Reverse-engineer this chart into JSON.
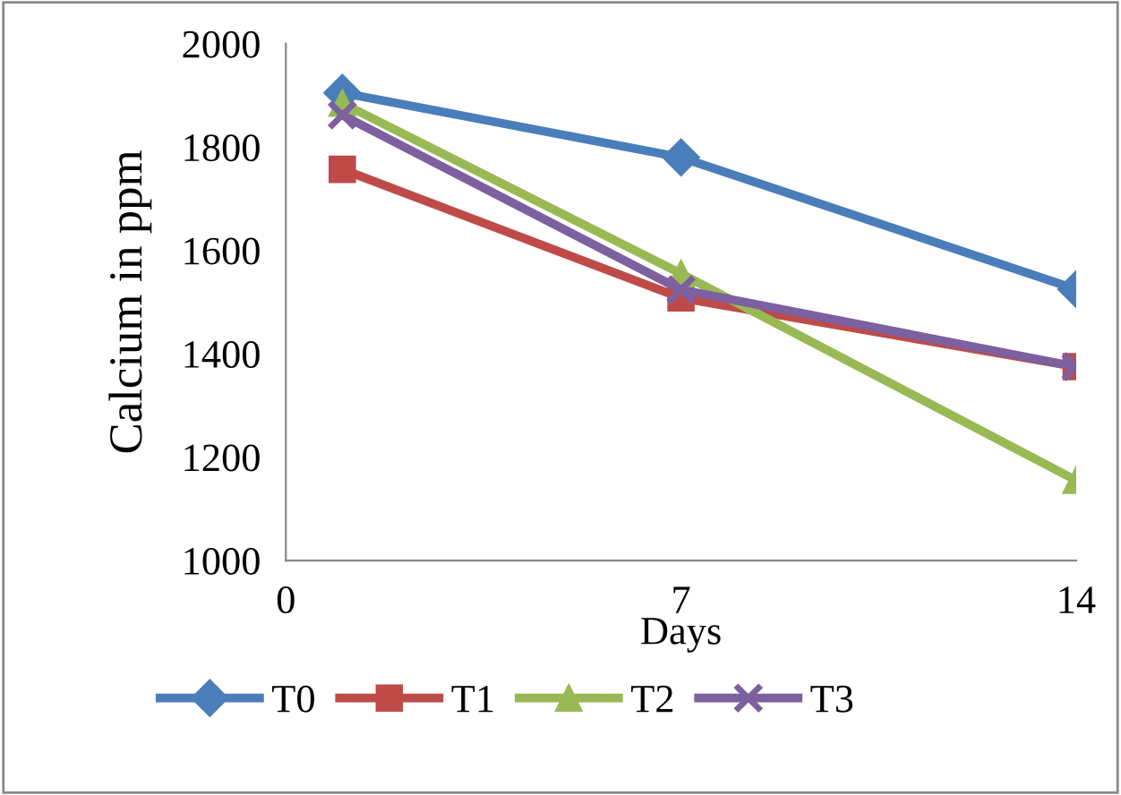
{
  "chart_data": {
    "type": "line",
    "xlabel": "Days",
    "ylabel": "Calcium in ppm",
    "x": [
      1,
      7,
      14
    ],
    "xlim": [
      0,
      14
    ],
    "xticks": [
      0,
      7,
      14
    ],
    "ylim": [
      1000,
      2000
    ],
    "yticks": [
      1000,
      1200,
      1400,
      1600,
      1800,
      2000
    ],
    "grid": false,
    "legend": "bottom",
    "series": [
      {
        "name": "T0",
        "color": "#4a7ebb",
        "values": [
          1905,
          1780,
          1525
        ],
        "marker": "diamond"
      },
      {
        "name": "T1",
        "color": "#be4b48",
        "values": [
          1757,
          1508,
          1375
        ],
        "marker": "square"
      },
      {
        "name": "T2",
        "color": "#98b954",
        "values": [
          1885,
          1555,
          1155
        ],
        "marker": "triangle"
      },
      {
        "name": "T3",
        "color": "#7d60a0",
        "values": [
          1862,
          1524,
          1375
        ],
        "marker": "cross"
      }
    ]
  }
}
